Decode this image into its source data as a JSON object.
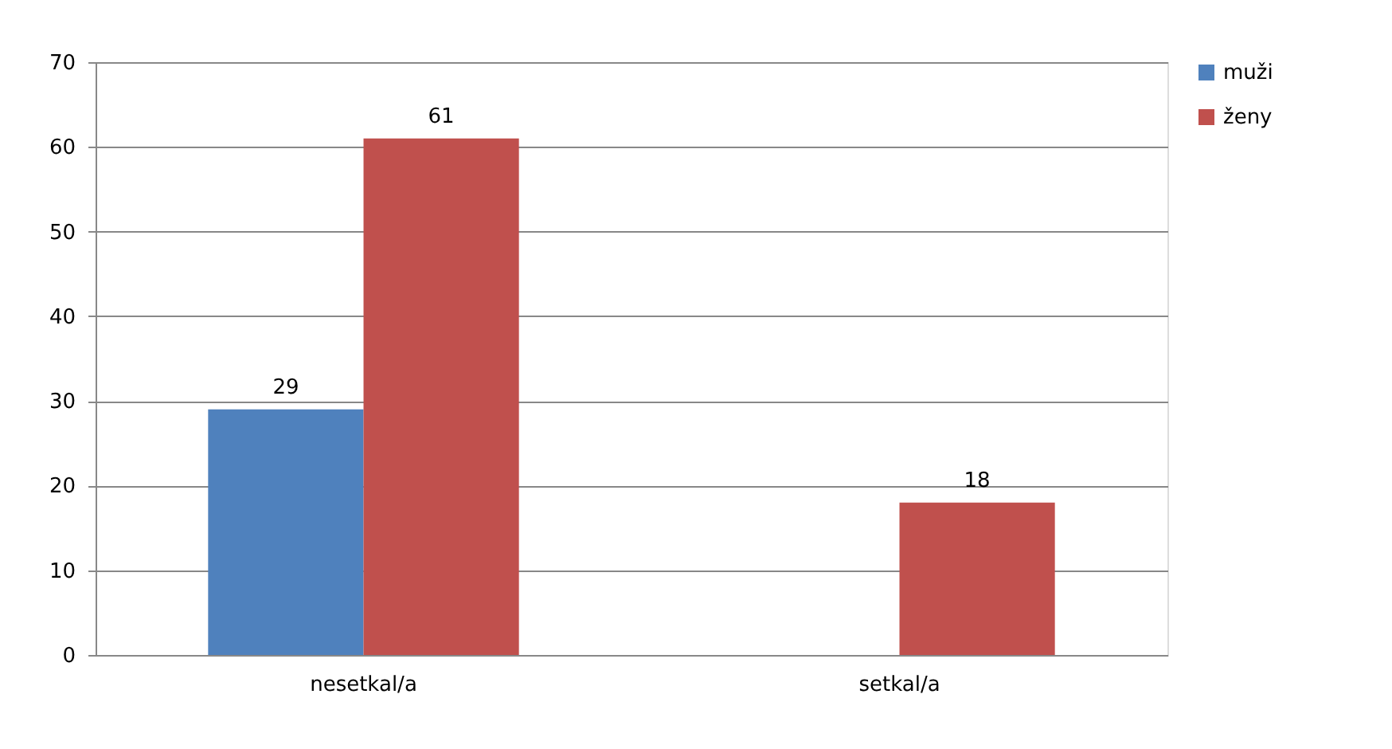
{
  "chart_data": {
    "type": "bar",
    "categories": [
      "nesetkal/a",
      "setkal/a"
    ],
    "series": [
      {
        "name": "muži",
        "color": "#4f81bd",
        "values": [
          29,
          null
        ]
      },
      {
        "name": "ženy",
        "color": "#c0504d",
        "values": [
          61,
          18
        ]
      }
    ],
    "ylim": [
      0,
      70
    ],
    "yticks": [
      0,
      10,
      20,
      30,
      40,
      50,
      60,
      70
    ],
    "grid": "y",
    "legend": "right",
    "data_labels": true
  }
}
